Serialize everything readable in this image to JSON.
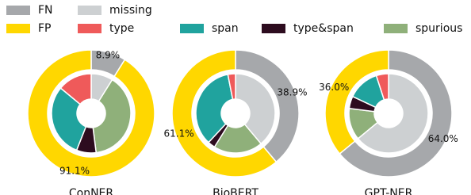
{
  "chart_data": [
    {
      "type": "pie",
      "title": "ConNER",
      "categories": [
        "FN",
        "FP"
      ],
      "values": [
        8.9,
        91.1
      ],
      "value_labels": [
        "8.9%",
        "91.1%"
      ],
      "colors": [
        "#a6a8ab",
        "#ffd700"
      ],
      "inner_categories": [
        "missing",
        "spurious",
        "type&span",
        "span",
        "type"
      ],
      "inner_values": [
        8.9,
        39.1,
        8,
        30,
        14
      ],
      "inner_colors": [
        "#cdd0d2",
        "#8fb07a",
        "#2d0c1f",
        "#20a39e",
        "#ef5a5a"
      ]
    },
    {
      "type": "pie",
      "title": "BioBERT",
      "categories": [
        "FN",
        "FP"
      ],
      "values": [
        38.9,
        61.1
      ],
      "value_labels": [
        "38.9%",
        "61.1%"
      ],
      "colors": [
        "#a6a8ab",
        "#ffd700"
      ],
      "inner_categories": [
        "missing",
        "spurious",
        "type&span",
        "span",
        "type"
      ],
      "inner_values": [
        38.9,
        20,
        3,
        35,
        3.1
      ],
      "inner_colors": [
        "#cdd0d2",
        "#8fb07a",
        "#2d0c1f",
        "#20a39e",
        "#ef5a5a"
      ]
    },
    {
      "type": "pie",
      "title": "GPT-NER",
      "categories": [
        "FN",
        "FP"
      ],
      "values": [
        64.0,
        36.0
      ],
      "value_labels": [
        "64.0%",
        "36.0%"
      ],
      "colors": [
        "#a6a8ab",
        "#ffd700"
      ],
      "inner_categories": [
        "missing",
        "spurious",
        "type&span",
        "span",
        "type"
      ],
      "inner_values": [
        64,
        13,
        5,
        13,
        5
      ],
      "inner_colors": [
        "#cdd0d2",
        "#8fb07a",
        "#2d0c1f",
        "#20a39e",
        "#ef5a5a"
      ]
    }
  ]
}
